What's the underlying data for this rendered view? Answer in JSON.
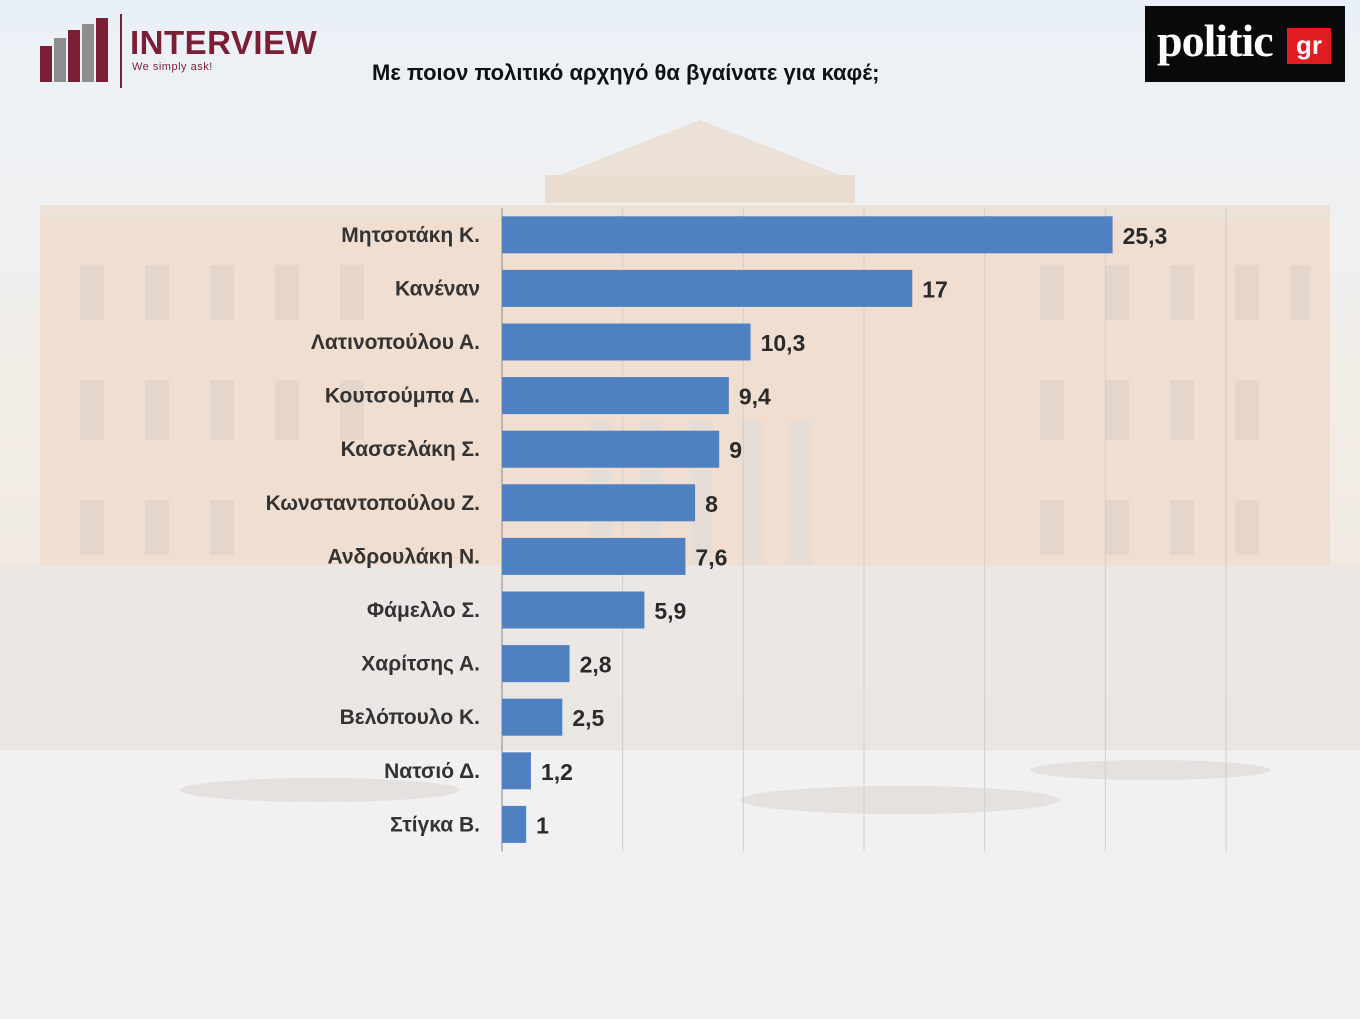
{
  "header": {
    "brand_left": "INTERVIEW",
    "brand_left_tagline": "We simply ask!",
    "title": "Με ποιον πολιτικό αρχηγό θα βγαίνατε για καφέ;",
    "brand_right": "politic",
    "brand_right_suffix": "gr"
  },
  "colors": {
    "bar": "#4f81c0",
    "brand_left": "#7a1f35",
    "brand_right_accent": "#e11b22"
  },
  "chart_data": {
    "type": "bar",
    "orientation": "horizontal",
    "title": "Με ποιον πολιτικό αρχηγό θα βγαίνατε για καφέ;",
    "categories": [
      "Μητσοτάκη Κ.",
      "Κανέναν",
      "Λατινοπούλου Α.",
      "Κουτσούμπα Δ.",
      "Κασσελάκη Σ.",
      "Κωνσταντοπούλου Ζ.",
      "Ανδρουλάκη Ν.",
      "Φάμελλο Σ.",
      "Χαρίτσης Α.",
      "Βελόπουλο Κ.",
      "Νατσιό Δ.",
      "Στίγκα Β."
    ],
    "values": [
      25.3,
      17,
      10.3,
      9.4,
      9,
      8,
      7.6,
      5.9,
      2.8,
      2.5,
      1.2,
      1
    ],
    "value_labels": [
      "25,3",
      "17",
      "10,3",
      "9,4",
      "9",
      "8",
      "7,6",
      "5,9",
      "2,8",
      "2,5",
      "1,2",
      "1"
    ],
    "xlim": [
      0,
      30
    ],
    "grid": true,
    "legend": "none"
  }
}
